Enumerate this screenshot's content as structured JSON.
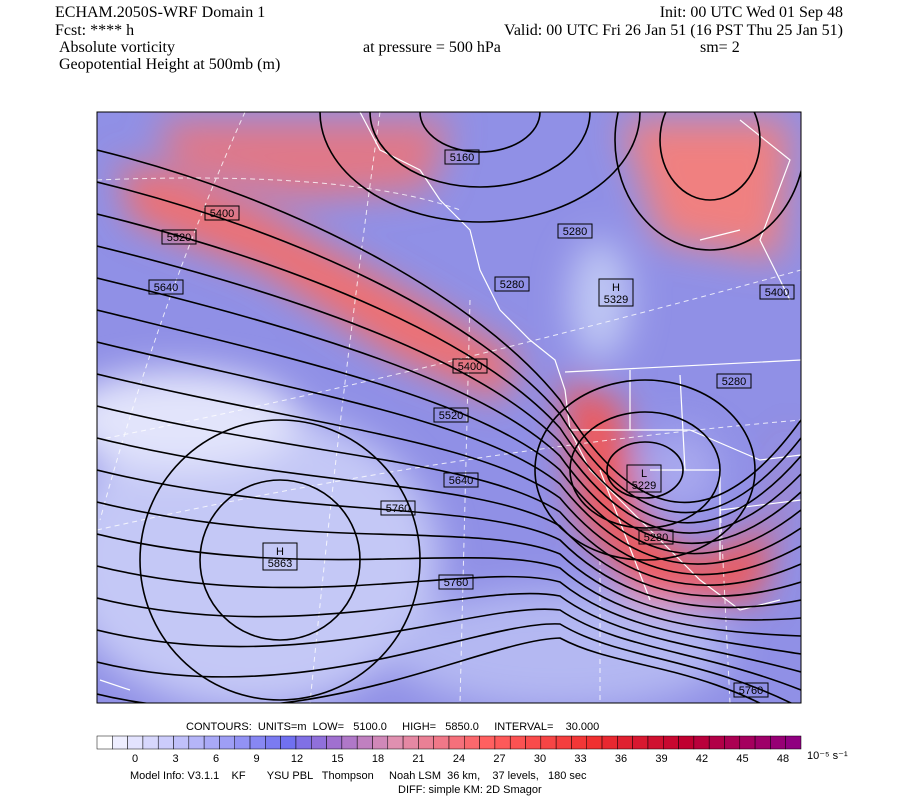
{
  "header": {
    "left": [
      "ECHAM.2050S-WRF Domain 1",
      "Fcst: **** h",
      "Absolute vorticity",
      "Geopotential Height at 500mb (m)"
    ],
    "right": [
      "Init: 00 UTC Wed 01 Sep 48",
      "Valid: 00 UTC Fri 26 Jan 51 (16 PST Thu 25 Jan 51)",
      "at pressure =  500 hPa",
      "sm= 2"
    ]
  },
  "map": {
    "contour_labels": [
      5160,
      5400,
      5520,
      5640,
      5280,
      5280,
      5400,
      5400,
      5520,
      5280,
      5640,
      5760,
      5280,
      5760,
      5760
    ],
    "centers": [
      {
        "symbol": "H",
        "value": 5329
      },
      {
        "symbol": "L",
        "value": 5229
      },
      {
        "symbol": "H",
        "value": 5863
      }
    ]
  },
  "footer": {
    "contours": "CONTOURS:  UNITS=m  LOW=   5100.0     HIGH=   5850.0     INTERVAL=    30.000",
    "colorbar": {
      "ticks": [
        0,
        3,
        6,
        9,
        12,
        15,
        18,
        21,
        24,
        27,
        30,
        33,
        36,
        39,
        42,
        45,
        48
      ],
      "units": "10⁻⁵ s⁻¹"
    },
    "model_info": "Model Info: V3.1.1    KF       YSU PBL   Thompson     Noah LSM  36 km,    37 levels,   180 sec",
    "diff": "DIFF: simple KM: 2D Smagor"
  }
}
